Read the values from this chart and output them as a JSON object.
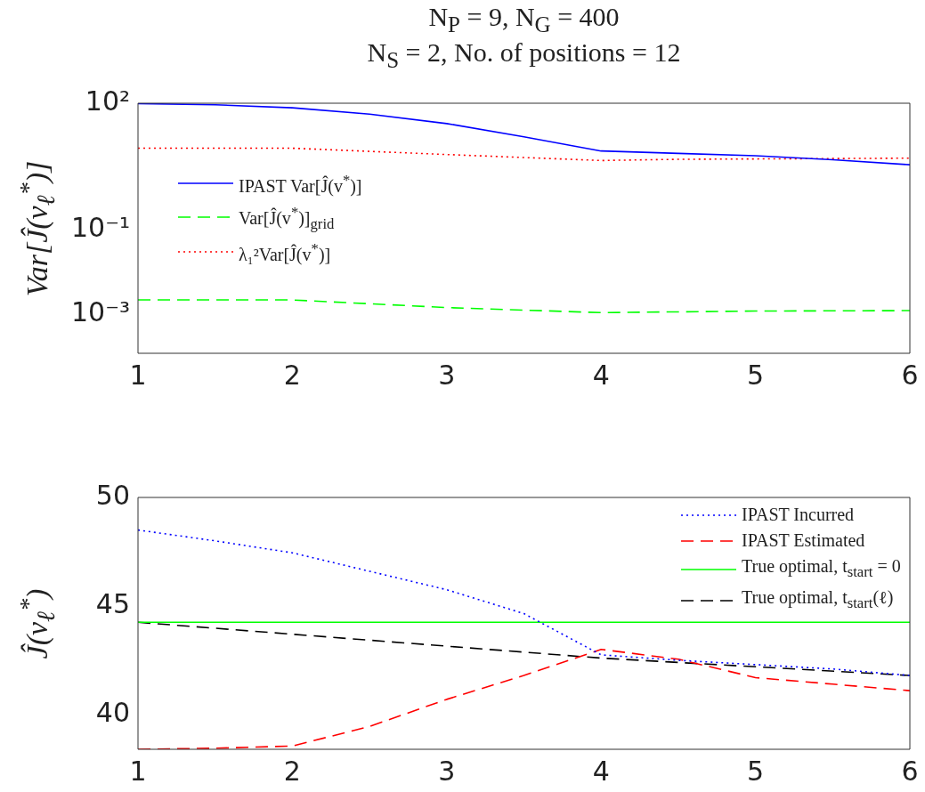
{
  "chart_data": [
    {
      "type": "line",
      "title": "N$_{P}$ = 9, N$_{G}$ = 400",
      "subtitle": "N$_{S}$ = 2, No. of positions = 12",
      "ylabel": "Var[Ĵ(v$_{ℓ}$$^{*}$)]",
      "log": "y",
      "grid": false,
      "legend": "left",
      "marker": "none",
      "xlim": [
        1,
        6
      ],
      "xticks": [
        1,
        2,
        3,
        4,
        5,
        6
      ],
      "ylim": [
        0.00012,
        100
      ],
      "yticks": [
        {
          "value": 100,
          "label": "10²"
        },
        {
          "value": 0.1,
          "label": "10⁻¹"
        },
        {
          "value": 0.001,
          "label": "10⁻³"
        }
      ],
      "series": [
        {
          "name": "IPAST Var[Ĵ(v$^{*}$)]",
          "color": "#0000ff",
          "line_style": "solid",
          "x": [
            1,
            1.5,
            2,
            2.5,
            3,
            3.5,
            4,
            4.5,
            5,
            5.5,
            6
          ],
          "values": [
            98,
            92,
            78,
            55,
            33,
            16,
            7.4,
            6.5,
            5.7,
            4.6,
            3.5
          ]
        },
        {
          "name": "Var[Ĵ(v$^{*}$)]$_{grid}$",
          "color": "#00ff00",
          "line_style": "dashed",
          "x": [
            1,
            2,
            3,
            4,
            5,
            6
          ],
          "values": [
            0.0022,
            0.0022,
            0.00145,
            0.0011,
            0.0012,
            0.00123
          ]
        },
        {
          "name": "λ₁²Var[Ĵ(v$^{*}$)]",
          "color": "#ff0000",
          "line_style": "dotted",
          "x": [
            1,
            2,
            3,
            4,
            4.5,
            5,
            6
          ],
          "values": [
            8.6,
            8.6,
            6.1,
            4.4,
            4.7,
            4.8,
            5.0
          ]
        }
      ]
    },
    {
      "type": "line",
      "ylabel": "Ĵ(v$_{ℓ}$$^{*}$)",
      "grid": false,
      "legend": "top right",
      "marker": "none",
      "xlim": [
        1,
        6
      ],
      "xticks": [
        1,
        2,
        3,
        4,
        5,
        6
      ],
      "ylim": [
        38.4,
        50
      ],
      "yticks": [
        40,
        45,
        50
      ],
      "series": [
        {
          "name": "IPAST Incurred",
          "color": "#0000ff",
          "line_style": "dotted",
          "x": [
            1,
            1.5,
            2,
            2.5,
            3,
            3.5,
            4,
            4.5,
            5,
            5.5,
            6
          ],
          "values": [
            48.5,
            48.0,
            47.45,
            46.6,
            45.75,
            44.65,
            42.75,
            42.5,
            42.3,
            42.1,
            41.8
          ]
        },
        {
          "name": "IPAST Estimated",
          "color": "#ff0000",
          "line_style": "dashed",
          "x": [
            1,
            1.5,
            2,
            2.5,
            3,
            3.5,
            4,
            4.5,
            5,
            5.5,
            6
          ],
          "values": [
            38.4,
            38.45,
            38.55,
            39.45,
            40.7,
            41.8,
            43.0,
            42.55,
            41.7,
            41.4,
            41.1
          ]
        },
        {
          "name": "True optimal, t$_{start}$ = 0",
          "color": "#00ff00",
          "line_style": "solid",
          "x": [
            1,
            6
          ],
          "values": [
            44.25,
            44.25
          ]
        },
        {
          "name": "True optimal, t$_{start}$(ℓ)",
          "color": "#000000",
          "line_style": "dashed",
          "x": [
            1,
            2,
            3,
            4,
            5,
            6
          ],
          "values": [
            44.25,
            43.7,
            43.15,
            42.6,
            42.2,
            41.8
          ]
        }
      ]
    }
  ]
}
